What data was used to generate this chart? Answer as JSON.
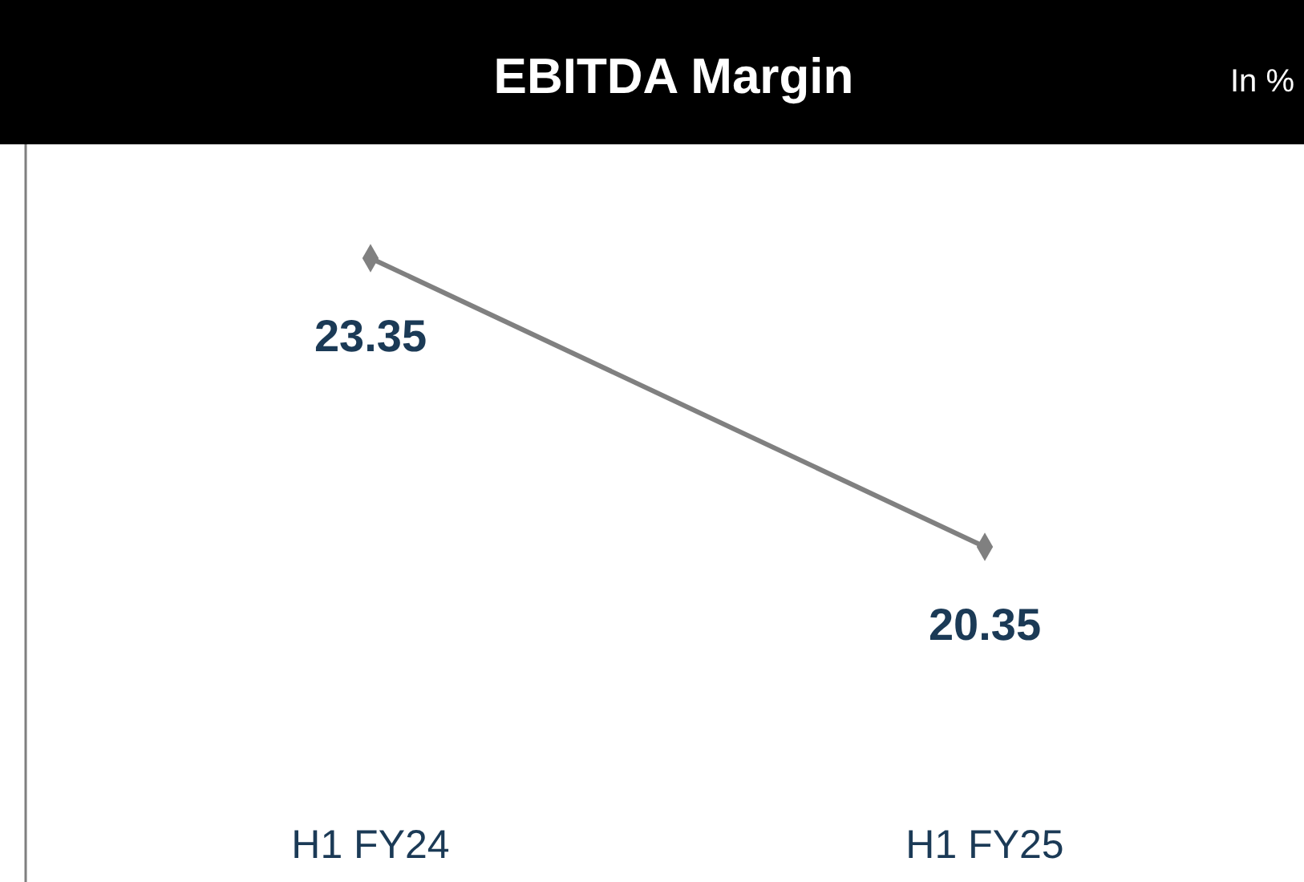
{
  "chart_data": {
    "type": "line",
    "title": "EBITDA Margin",
    "subtitle": "In %",
    "categories": [
      "H1 FY24",
      "H1 FY25"
    ],
    "series": [
      {
        "color": "#808080",
        "values": [
          23.35,
          20.35
        ]
      }
    ],
    "marker": "diamond",
    "data_labels": true
  }
}
